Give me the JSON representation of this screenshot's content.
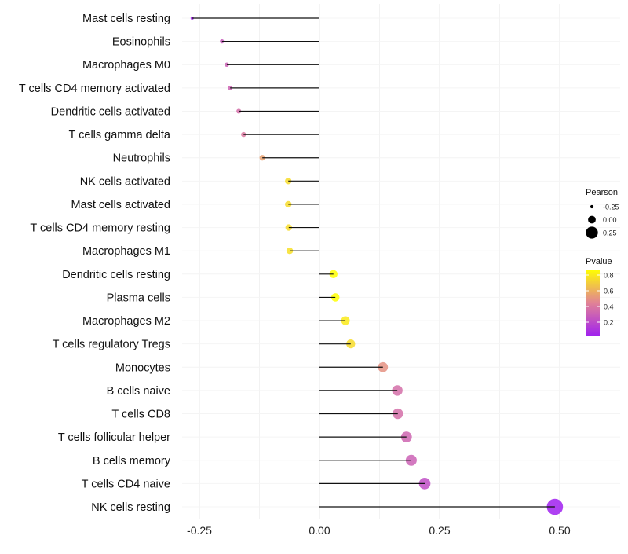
{
  "chart_data": {
    "type": "lollipop",
    "title": "",
    "xlabel": "",
    "ylabel": "",
    "xlim": [
      -0.28,
      0.52
    ],
    "x_ticks": [
      "-0.25",
      "0.00",
      "0.25",
      "0.50"
    ],
    "x_tick_values": [
      -0.25,
      0,
      0.25,
      0.5
    ],
    "grid": true,
    "categories": [
      "Mast cells resting",
      "Eosinophils",
      "Macrophages M0",
      "T cells CD4 memory activated",
      "Dendritic cells activated",
      "T cells gamma delta",
      "Neutrophils",
      "NK cells activated",
      "Mast cells activated",
      "T cells CD4 memory resting",
      "Macrophages M1",
      "Dendritic cells resting",
      "Plasma cells",
      "Macrophages M2",
      "T cells regulatory  Tregs ",
      "Monocytes",
      "B cells naive",
      "T cells CD8",
      "T cells follicular helper",
      "B cells memory",
      "T cells CD4 naive",
      "NK cells resting"
    ],
    "pearson": [
      -0.265,
      -0.203,
      -0.193,
      -0.186,
      -0.168,
      -0.158,
      -0.119,
      -0.065,
      -0.065,
      -0.064,
      -0.062,
      0.029,
      0.033,
      0.054,
      0.065,
      0.132,
      0.162,
      0.163,
      0.181,
      0.191,
      0.219,
      0.49
    ],
    "pvalue": [
      0.03,
      0.27,
      0.3,
      0.31,
      0.36,
      0.4,
      0.55,
      0.75,
      0.75,
      0.75,
      0.76,
      0.88,
      0.87,
      0.8,
      0.75,
      0.5,
      0.36,
      0.36,
      0.32,
      0.3,
      0.22,
      0.02
    ],
    "legend": {
      "placement": "right",
      "size_title": "Pearson",
      "size_labels": [
        "-0.25",
        "0.00",
        "0.25"
      ],
      "size_values": [
        -0.25,
        0,
        0.25
      ],
      "color_title": "Pvalue",
      "color_labels": [
        "0.8",
        "0.6",
        "0.4",
        "0.2"
      ],
      "color_values": [
        0.8,
        0.6,
        0.4,
        0.2
      ],
      "color_range": [
        0.02,
        0.87
      ],
      "color_low": "#A020F0",
      "color_high": "#FFFF00"
    }
  }
}
